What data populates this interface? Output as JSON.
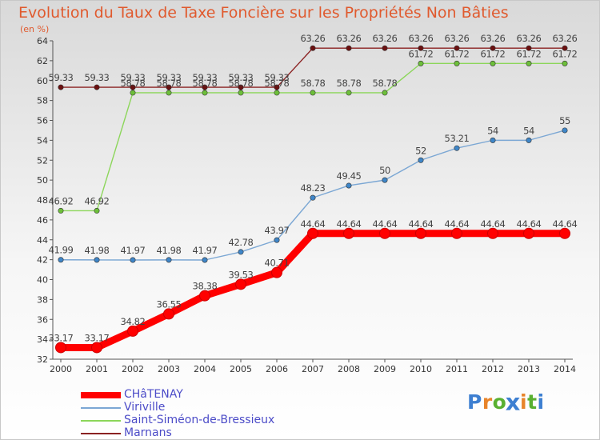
{
  "title": "Evolution du Taux de Taxe Foncière sur les Propriétés Non Bâties",
  "unit_label": "(en %)",
  "logo": {
    "text": "Proxiti",
    "letter_colors": [
      "#3d7fd1",
      "#e8842a",
      "#59b031",
      "#3d7fd1",
      "#e8842a",
      "#59b031",
      "#3d7fd1"
    ]
  },
  "chart_data": {
    "type": "line",
    "x": [
      "2000",
      "2001",
      "2002",
      "2003",
      "2004",
      "2005",
      "2006",
      "2007",
      "2008",
      "2009",
      "2010",
      "2011",
      "2012",
      "2013",
      "2014"
    ],
    "ylim": [
      32,
      64
    ],
    "yticks": [
      32,
      34,
      36,
      38,
      40,
      42,
      44,
      46,
      48,
      50,
      52,
      54,
      56,
      58,
      60,
      62,
      64
    ],
    "grid": false,
    "legend_position": "bottom-left",
    "series": [
      {
        "name": "CHâTENAY",
        "color": "#ff0000",
        "emphasis": true,
        "values": [
          33.17,
          33.17,
          34.82,
          36.55,
          38.38,
          39.53,
          40.71,
          44.64,
          44.64,
          44.64,
          44.64,
          44.64,
          44.64,
          44.64,
          44.64
        ],
        "labels": [
          "33.17",
          "33.17",
          "34.82",
          "36.55",
          "38.38",
          "39.53",
          "40.71",
          "44.64",
          "44.64",
          "44.64",
          "44.64",
          "44.64",
          "44.64",
          "44.64",
          "44.64"
        ]
      },
      {
        "name": "Viriville",
        "color": "#7ba7d4",
        "marker": "#3f86c8",
        "values": [
          41.99,
          41.98,
          41.97,
          41.98,
          41.97,
          42.78,
          43.97,
          48.23,
          49.45,
          50,
          52,
          53.21,
          54,
          54,
          55
        ],
        "labels": [
          "41.99",
          "41.98",
          "41.97",
          "41.98",
          "41.97",
          "42.78",
          "43.97",
          "48.23",
          "49.45",
          "50",
          "52",
          "53.21",
          "54",
          "54",
          "55"
        ]
      },
      {
        "name": "Saint-Siméon-de-Bressieux",
        "color": "#8cd65a",
        "marker": "#6dbf3a",
        "values": [
          46.92,
          46.92,
          58.78,
          58.78,
          58.78,
          58.78,
          58.78,
          58.78,
          58.78,
          58.78,
          61.72,
          61.72,
          61.72,
          61.72,
          61.72
        ],
        "labels": [
          "46.92",
          "46.92",
          "58.78",
          "58.78",
          "58.78",
          "58.78",
          "58.78",
          "58.78",
          "58.78",
          "58.78",
          "61.72",
          "61.72",
          "61.72",
          "61.72",
          "61.72"
        ]
      },
      {
        "name": "Marnans",
        "color": "#8b2222",
        "marker": "#6b1010",
        "values": [
          59.33,
          59.33,
          59.33,
          59.33,
          59.33,
          59.33,
          59.33,
          63.26,
          63.26,
          63.26,
          63.26,
          63.26,
          63.26,
          63.26,
          63.26
        ],
        "labels": [
          "59.33",
          "59.33",
          "59.33",
          "59.33",
          "59.33",
          "59.33",
          "59.33",
          "63.26",
          "63.26",
          "63.26",
          "63.26",
          "63.26",
          "63.26",
          "63.26",
          "63.26"
        ]
      }
    ]
  }
}
